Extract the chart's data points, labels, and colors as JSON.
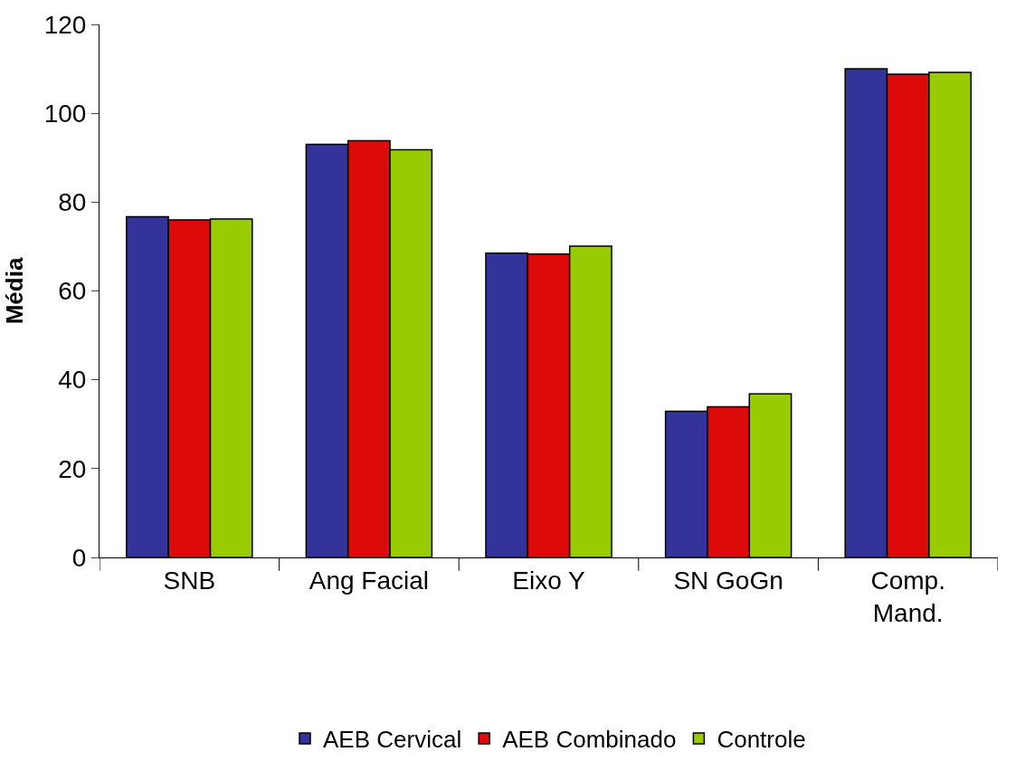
{
  "chart_data": {
    "type": "bar",
    "ylabel": "Média",
    "categories": [
      "SNB",
      "Ang Facial",
      "Eixo Y",
      "SN GoGn",
      "Comp.\nMand."
    ],
    "series": [
      {
        "name": "AEB Cervical",
        "color": "#333399",
        "values": [
          76.7,
          93.0,
          68.5,
          32.9,
          110.0
        ]
      },
      {
        "name": "AEB Combinado",
        "color": "#dd0a0a",
        "values": [
          76.0,
          93.8,
          68.3,
          33.9,
          108.8
        ]
      },
      {
        "name": "Controle",
        "color": "#99cc00",
        "values": [
          76.2,
          91.8,
          70.1,
          36.8,
          109.2
        ]
      }
    ],
    "ylim": [
      0,
      120
    ],
    "yticks": [
      0,
      20,
      40,
      60,
      80,
      100,
      120
    ],
    "legend": "bottom"
  }
}
